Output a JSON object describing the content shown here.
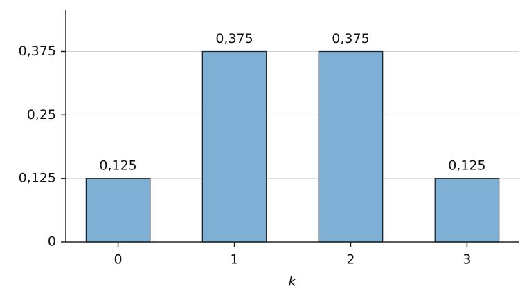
{
  "chart_data": {
    "type": "bar",
    "categories": [
      "0",
      "1",
      "2",
      "3"
    ],
    "values": [
      0.125,
      0.375,
      0.375,
      0.125
    ],
    "value_labels": [
      "0,125",
      "0,375",
      "0,375",
      "0,125"
    ],
    "color": "#7eb0d5",
    "x_label": "k",
    "ylim": [
      0,
      0.456
    ],
    "yticks": [
      0,
      {
        "value": 0.125,
        "label": "0,125"
      },
      {
        "value": 0.25,
        "label": "0,25"
      },
      {
        "value": 0.375,
        "label": "0,375"
      }
    ],
    "grid": true
  }
}
